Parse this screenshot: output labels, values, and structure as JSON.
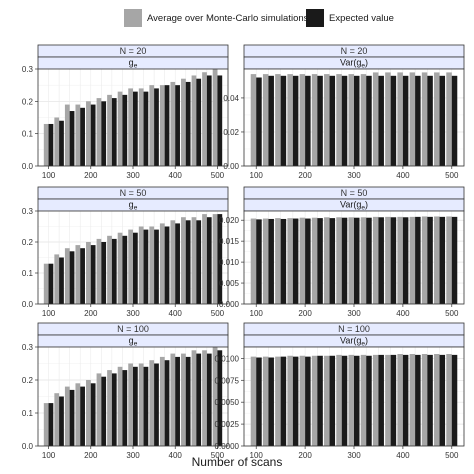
{
  "legend": {
    "position": "top",
    "items": [
      {
        "label": "Average over Monte-Carlo simulations",
        "color": "#a6a6a6"
      },
      {
        "label": "Expected value",
        "color": "#1a1a1a"
      }
    ]
  },
  "xlabel": "Number of scans",
  "chart_data": {
    "type": "bar",
    "layout": "facet grid 3 rows x 2 columns",
    "grid": true,
    "x": [
      100,
      125,
      150,
      175,
      200,
      225,
      250,
      275,
      300,
      325,
      350,
      375,
      400,
      425,
      450,
      475,
      500
    ],
    "xticks": [
      "100",
      "200",
      "300",
      "400",
      "500"
    ],
    "panels": [
      {
        "strip_top": "N = 20",
        "strip_bottom": "g_e",
        "strip_sub": "e",
        "ylim": [
          0,
          0.3
        ],
        "yticks": [
          "0.0",
          "0.1",
          "0.2",
          "0.3"
        ],
        "ytick_values": [
          0,
          0.1,
          0.2,
          0.3
        ],
        "series": [
          {
            "name": "Average over Monte-Carlo simulations",
            "values": [
              0.13,
              0.15,
              0.19,
              0.19,
              0.2,
              0.21,
              0.22,
              0.23,
              0.24,
              0.24,
              0.25,
              0.25,
              0.26,
              0.27,
              0.28,
              0.29,
              0.3
            ]
          },
          {
            "name": "Expected value",
            "values": [
              0.13,
              0.14,
              0.17,
              0.18,
              0.19,
              0.2,
              0.21,
              0.22,
              0.23,
              0.23,
              0.24,
              0.25,
              0.25,
              0.26,
              0.27,
              0.28,
              0.28
            ]
          }
        ]
      },
      {
        "strip_top": "N = 20",
        "strip_bottom": "Var(g_e)",
        "strip_sub": "e",
        "ylim": [
          0,
          0.057
        ],
        "yticks": [
          "0.00",
          "0.02",
          "0.04"
        ],
        "ytick_values": [
          0,
          0.02,
          0.04
        ],
        "series": [
          {
            "name": "Average over Monte-Carlo simulations",
            "values": [
              0.054,
              0.054,
              0.054,
              0.054,
              0.054,
              0.054,
              0.054,
              0.054,
              0.054,
              0.054,
              0.055,
              0.055,
              0.055,
              0.055,
              0.055,
              0.055,
              0.055
            ]
          },
          {
            "name": "Expected value",
            "values": [
              0.052,
              0.053,
              0.053,
              0.053,
              0.053,
              0.053,
              0.053,
              0.053,
              0.053,
              0.053,
              0.053,
              0.053,
              0.053,
              0.053,
              0.053,
              0.053,
              0.053
            ]
          }
        ]
      },
      {
        "strip_top": "N = 50",
        "strip_bottom": "g_e",
        "strip_sub": "e",
        "ylim": [
          0,
          0.3
        ],
        "yticks": [
          "0.0",
          "0.1",
          "0.2",
          "0.3"
        ],
        "ytick_values": [
          0,
          0.1,
          0.2,
          0.3
        ],
        "series": [
          {
            "name": "Average over Monte-Carlo simulations",
            "values": [
              0.13,
              0.16,
              0.18,
              0.19,
              0.2,
              0.21,
              0.22,
              0.23,
              0.24,
              0.25,
              0.25,
              0.26,
              0.27,
              0.28,
              0.28,
              0.29,
              0.29
            ]
          },
          {
            "name": "Expected value",
            "values": [
              0.13,
              0.15,
              0.17,
              0.18,
              0.19,
              0.2,
              0.21,
              0.22,
              0.23,
              0.24,
              0.24,
              0.25,
              0.26,
              0.27,
              0.27,
              0.28,
              0.29
            ]
          }
        ]
      },
      {
        "strip_top": "N = 50",
        "strip_bottom": "Var(g_e)",
        "strip_sub": "e",
        "ylim": [
          0,
          0.0222
        ],
        "yticks": [
          "0.000",
          "0.005",
          "0.010",
          "0.015",
          "0.020"
        ],
        "ytick_values": [
          0,
          0.005,
          0.01,
          0.015,
          0.02
        ],
        "series": [
          {
            "name": "Average over Monte-Carlo simulations",
            "values": [
              0.0204,
              0.0204,
              0.0205,
              0.0205,
              0.0206,
              0.0206,
              0.0207,
              0.0207,
              0.0207,
              0.0207,
              0.0208,
              0.0208,
              0.0208,
              0.0208,
              0.0209,
              0.0209,
              0.0209
            ]
          },
          {
            "name": "Expected value",
            "values": [
              0.0202,
              0.0203,
              0.0203,
              0.0204,
              0.0204,
              0.0205,
              0.0205,
              0.0206,
              0.0206,
              0.0206,
              0.0207,
              0.0207,
              0.0207,
              0.0208,
              0.0208,
              0.0208,
              0.0208
            ]
          }
        ]
      },
      {
        "strip_top": "N = 100",
        "strip_bottom": "g_e",
        "strip_sub": "e",
        "ylim": [
          0,
          0.3
        ],
        "yticks": [
          "0.0",
          "0.1",
          "0.2",
          "0.3"
        ],
        "ytick_values": [
          0,
          0.1,
          0.2,
          0.3
        ],
        "series": [
          {
            "name": "Average over Monte-Carlo simulations",
            "values": [
              0.13,
              0.16,
              0.18,
              0.19,
              0.2,
              0.22,
              0.23,
              0.24,
              0.25,
              0.25,
              0.26,
              0.27,
              0.28,
              0.28,
              0.29,
              0.29,
              0.3
            ]
          },
          {
            "name": "Expected value",
            "values": [
              0.13,
              0.15,
              0.17,
              0.18,
              0.19,
              0.21,
              0.22,
              0.23,
              0.24,
              0.24,
              0.25,
              0.26,
              0.27,
              0.27,
              0.28,
              0.28,
              0.29
            ]
          }
        ]
      },
      {
        "strip_top": "N = 100",
        "strip_bottom": "Var(g_e)",
        "strip_sub": "e",
        "ylim": [
          0,
          0.0113
        ],
        "yticks": [
          "0.0000",
          "0.0025",
          "0.0050",
          "0.0075",
          "0.0100"
        ],
        "ytick_values": [
          0,
          0.0025,
          0.005,
          0.0075,
          0.01
        ],
        "series": [
          {
            "name": "Average over Monte-Carlo simulations",
            "values": [
              0.0102,
              0.0102,
              0.0102,
              0.0103,
              0.0103,
              0.0103,
              0.0103,
              0.0104,
              0.0104,
              0.0104,
              0.0104,
              0.0104,
              0.0105,
              0.0105,
              0.0105,
              0.0105,
              0.0105
            ]
          },
          {
            "name": "Expected value",
            "values": [
              0.0101,
              0.0101,
              0.0102,
              0.0102,
              0.0102,
              0.0103,
              0.0103,
              0.0103,
              0.0103,
              0.0103,
              0.0104,
              0.0104,
              0.0104,
              0.0104,
              0.0104,
              0.0104,
              0.0104
            ]
          }
        ]
      }
    ]
  }
}
